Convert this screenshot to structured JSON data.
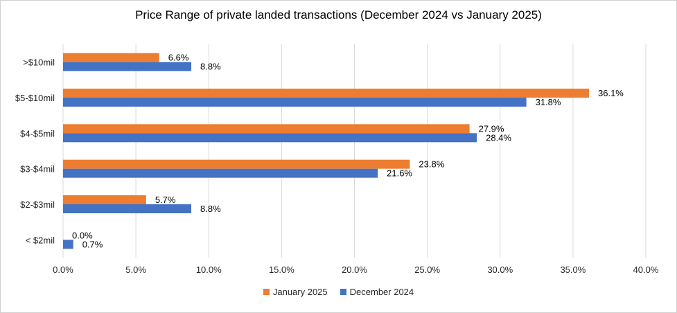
{
  "chart_data": {
    "type": "bar",
    "orientation": "horizontal",
    "title": "Price Range of private landed transactions (December 2024 vs January 2025)",
    "categories": [
      ">$10mil",
      "$5-$10mil",
      "$4-$5mil",
      "$3-$4mil",
      "$2-$3mil",
      "< $2mil"
    ],
    "series": [
      {
        "name": "January 2025",
        "color": "#ed7d31",
        "values": [
          6.6,
          36.1,
          27.9,
          23.8,
          5.7,
          0.0
        ],
        "labels": [
          "6.6%",
          "36.1%",
          "27.9%",
          "23.8%",
          "5.7%",
          "0.0%"
        ]
      },
      {
        "name": "December 2024",
        "color": "#4472c4",
        "values": [
          8.8,
          31.8,
          28.4,
          21.6,
          8.8,
          0.7
        ],
        "labels": [
          "8.8%",
          "31.8%",
          "28.4%",
          "21.6%",
          "8.8%",
          "0.7%"
        ]
      }
    ],
    "xlim": [
      0,
      40
    ],
    "xticks": [
      "0.0%",
      "5.0%",
      "10.0%",
      "15.0%",
      "20.0%",
      "25.0%",
      "30.0%",
      "35.0%",
      "40.0%"
    ],
    "grid": "vertical",
    "legend_position": "bottom"
  }
}
